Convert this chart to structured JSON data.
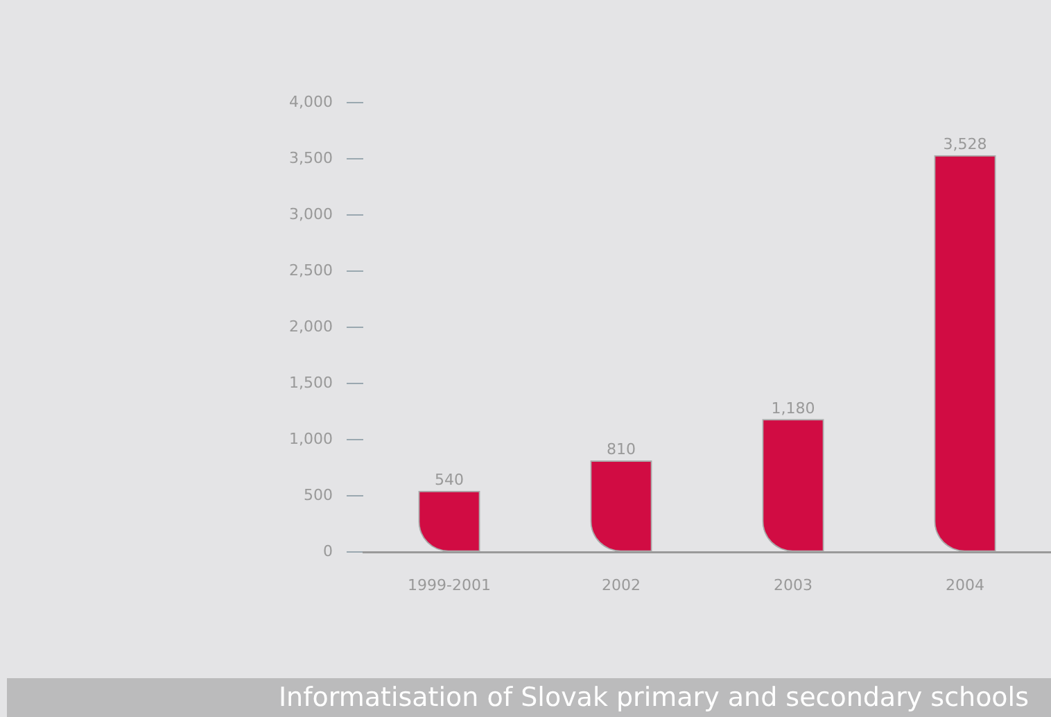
{
  "chart_data": {
    "type": "bar",
    "title": "Informatisation of Slovak primary and secondary schools",
    "categories": [
      "1999-2001",
      "2002",
      "2003",
      "2004"
    ],
    "values": [
      540,
      810,
      1180,
      3528
    ],
    "color": "#d10c43",
    "ylim": [
      0,
      4000
    ],
    "yticks": [
      {
        "value": 0,
        "label": "0"
      },
      {
        "value": 500,
        "label": "500"
      },
      {
        "value": 1000,
        "label": "1,000"
      },
      {
        "value": 1500,
        "label": "1,500"
      },
      {
        "value": 2000,
        "label": "2,000"
      },
      {
        "value": 2500,
        "label": "2,500"
      },
      {
        "value": 3000,
        "label": "3,000"
      },
      {
        "value": 3500,
        "label": "3,500"
      },
      {
        "value": 4000,
        "label": "4,000"
      }
    ],
    "value_labels": [
      "540",
      "810",
      "1,180",
      "3,528"
    ],
    "grid": false,
    "legend": false
  }
}
